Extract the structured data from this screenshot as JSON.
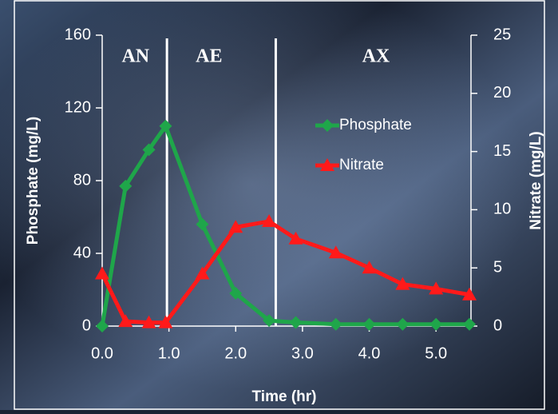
{
  "chart_data": {
    "type": "line",
    "x_label": "Time (hr)",
    "y_label": "Phosphate (mg/L)",
    "y2_label": "Nitrate (mg/L)",
    "x": [
      0,
      0.35,
      0.7,
      0.95,
      1.5,
      2.0,
      2.5,
      2.9,
      3.5,
      4.0,
      4.5,
      5.0,
      5.5
    ],
    "series": [
      {
        "name": "Phosphate",
        "color": "#1fa64a",
        "marker": "diamond",
        "values": [
          0,
          77,
          97,
          110,
          56,
          18,
          3,
          2,
          1,
          1,
          1,
          1,
          1
        ]
      },
      {
        "name": "Nitrate",
        "color": "#ff1a1a",
        "marker": "triangle",
        "axis": "y2",
        "values": [
          4.5,
          0.4,
          0.3,
          0.3,
          4.5,
          8.5,
          9.0,
          7.5,
          6.3,
          5.0,
          3.6,
          3.2,
          2.7
        ]
      }
    ],
    "xlim": [
      0,
      5.5
    ],
    "xticks": [
      {
        "value": 0,
        "label": "0.0"
      },
      {
        "value": 1,
        "label": "1.0"
      },
      {
        "value": 2,
        "label": "2.0"
      },
      {
        "value": 3,
        "label": "3.0"
      },
      {
        "value": 4,
        "label": "4.0"
      },
      {
        "value": 5,
        "label": "5.0"
      }
    ],
    "ylim": [
      0,
      160
    ],
    "yticks": [
      0,
      40,
      80,
      120,
      160
    ],
    "y2lim": [
      0,
      25
    ],
    "y2ticks": [
      0,
      5,
      10,
      15,
      20,
      25
    ],
    "phase_lines": [
      0.97,
      2.6
    ],
    "annotations": [
      {
        "text": "AN",
        "x": 0.5
      },
      {
        "text": "AE",
        "x": 1.6
      },
      {
        "text": "AX",
        "x": 4.1
      }
    ],
    "legend": "center"
  }
}
